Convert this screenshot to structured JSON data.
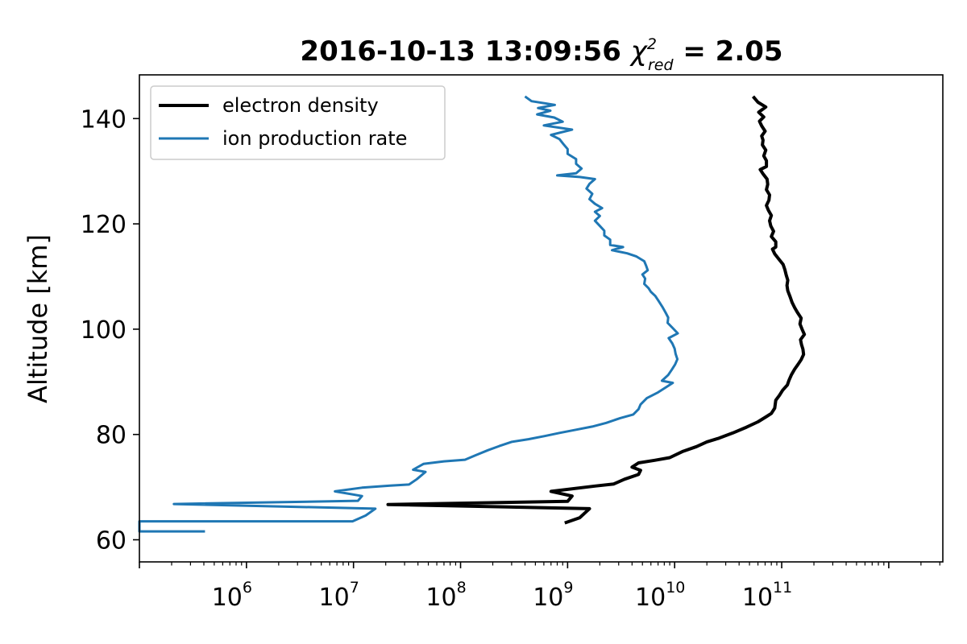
{
  "chart_data": {
    "type": "line",
    "title": {
      "prefix": "2016-10-13 13:09:56 ",
      "chi": "χ",
      "chi_sup": "2",
      "chi_sub": "red",
      "eq": " = ",
      "value": "2.05"
    },
    "xlabel": "",
    "ylabel": "Altitude [km]",
    "xscale": "log",
    "xlim": [
      100000,
      3200000000000
    ],
    "ylim": [
      55.8,
      148.3
    ],
    "x_ticks": [
      {
        "value": 1000000,
        "base": "10",
        "exp": "6"
      },
      {
        "value": 10000000,
        "base": "10",
        "exp": "7"
      },
      {
        "value": 100000000,
        "base": "10",
        "exp": "8"
      },
      {
        "value": 1000000000,
        "base": "10",
        "exp": "9"
      },
      {
        "value": 10000000000,
        "base": "10",
        "exp": "10"
      },
      {
        "value": 100000000000,
        "base": "10",
        "exp": "11"
      }
    ],
    "y_ticks": [
      {
        "value": 60,
        "label": "60"
      },
      {
        "value": 80,
        "label": "80"
      },
      {
        "value": 100,
        "label": "100"
      },
      {
        "value": 120,
        "label": "120"
      },
      {
        "value": 140,
        "label": "140"
      }
    ],
    "grid": false,
    "legend_position": "top-left",
    "series": [
      {
        "name": "electron density",
        "color": "#000000",
        "points": [
          [
            940000000.0,
            63.2
          ],
          [
            1300000000.0,
            64.2
          ],
          [
            1600000000.0,
            65.9
          ],
          [
            21000000.0,
            66.7
          ],
          [
            1000000000.0,
            67.3
          ],
          [
            1100000000.0,
            68.3
          ],
          [
            700000000.0,
            69.2
          ],
          [
            1800000000.0,
            70.2
          ],
          [
            2700000000.0,
            70.6
          ],
          [
            3400000000.0,
            71.5
          ],
          [
            4600000000.0,
            72.4
          ],
          [
            4800000000.0,
            73.2
          ],
          [
            4000000000.0,
            73.8
          ],
          [
            4600000000.0,
            74.6
          ],
          [
            6500000000.0,
            75.1
          ],
          [
            9000000000.0,
            75.6
          ],
          [
            12000000000.0,
            76.8
          ],
          [
            16000000000.0,
            77.7
          ],
          [
            20000000000.0,
            78.6
          ],
          [
            26000000000.0,
            79.3
          ],
          [
            35000000000.0,
            80.3
          ],
          [
            47000000000.0,
            81.4
          ],
          [
            60000000000.0,
            82.4
          ],
          [
            72000000000.0,
            83.4
          ],
          [
            80000000000.0,
            84.0
          ],
          [
            86000000000.0,
            85.0
          ],
          [
            88000000000.0,
            86.5
          ],
          [
            95000000000.0,
            87.4
          ],
          [
            102000000000.0,
            88.4
          ],
          [
            113000000000.0,
            89.4
          ],
          [
            117000000000.0,
            90.3
          ],
          [
            123000000000.0,
            91.3
          ],
          [
            132000000000.0,
            92.4
          ],
          [
            142000000000.0,
            93.3
          ],
          [
            152000000000.0,
            94.2
          ],
          [
            160000000000.0,
            95.2
          ],
          [
            158000000000.0,
            96.2
          ],
          [
            153000000000.0,
            97.1
          ],
          [
            150000000000.0,
            98.0
          ],
          [
            163000000000.0,
            99.0
          ],
          [
            155000000000.0,
            100.0
          ],
          [
            148000000000.0,
            101.0
          ],
          [
            152000000000.0,
            102.1
          ],
          [
            140000000000.0,
            103.2
          ],
          [
            132000000000.0,
            104.1
          ],
          [
            125000000000.0,
            105.1
          ],
          [
            120000000000.0,
            106.1
          ],
          [
            114000000000.0,
            107.3
          ],
          [
            112000000000.0,
            108.3
          ],
          [
            114000000000.0,
            109.3
          ],
          [
            110000000000.0,
            110.3
          ],
          [
            107000000000.0,
            111.3
          ],
          [
            103000000000.0,
            112.3
          ],
          [
            94000000000.0,
            113.3
          ],
          [
            86000000000.0,
            114.3
          ],
          [
            82000000000.0,
            115.2
          ],
          [
            88000000000.0,
            115.6
          ],
          [
            88000000000.0,
            116.6
          ],
          [
            80000000000.0,
            117.6
          ],
          [
            84000000000.0,
            118.6
          ],
          [
            79000000000.0,
            119.6
          ],
          [
            77000000000.0,
            120.6
          ],
          [
            80000000000.0,
            121.6
          ],
          [
            75000000000.0,
            122.6
          ],
          [
            72000000000.0,
            123.5
          ],
          [
            76000000000.0,
            124.5
          ],
          [
            77000000000.0,
            125.5
          ],
          [
            72000000000.0,
            126.5
          ],
          [
            74000000000.0,
            127.5
          ],
          [
            73000000000.0,
            128.5
          ],
          [
            67000000000.0,
            129.5
          ],
          [
            63000000000.0,
            130.3
          ],
          [
            72000000000.0,
            130.9
          ],
          [
            72000000000.0,
            132.0
          ],
          [
            68000000000.0,
            132.9
          ],
          [
            71000000000.0,
            134.0
          ],
          [
            66000000000.0,
            135.0
          ],
          [
            67000000000.0,
            135.9
          ],
          [
            65000000000.0,
            136.7
          ],
          [
            70000000000.0,
            137.6
          ],
          [
            65000000000.0,
            138.6
          ],
          [
            62000000000.0,
            139.5
          ],
          [
            68000000000.0,
            140.3
          ],
          [
            61000000000.0,
            141.2
          ],
          [
            71000000000.0,
            142.2
          ],
          [
            60000000000.0,
            143.1
          ],
          [
            54000000000.0,
            144.2
          ]
        ]
      },
      {
        "name": "ion production rate",
        "color": "#1f77b4",
        "points": [
          [
            410000.0,
            61.6
          ],
          [
            100000.0,
            61.6
          ],
          [
            100000.0,
            63.5
          ],
          [
            9800000.0,
            63.5
          ],
          [
            13000000.0,
            64.6
          ],
          [
            16000000.0,
            65.9
          ],
          [
            210000.0,
            66.8
          ],
          [
            11000000.0,
            67.4
          ],
          [
            12000000.0,
            68.3
          ],
          [
            6700000.0,
            69.2
          ],
          [
            12000000.0,
            69.9
          ],
          [
            22000000.0,
            70.3
          ],
          [
            33000000.0,
            70.5
          ],
          [
            39000000.0,
            71.5
          ],
          [
            47000000.0,
            72.9
          ],
          [
            36000000.0,
            73.3
          ],
          [
            45000000.0,
            74.4
          ],
          [
            70000000.0,
            74.9
          ],
          [
            110000000.0,
            75.2
          ],
          [
            140000000.0,
            76.1
          ],
          [
            180000000.0,
            77.0
          ],
          [
            230000000.0,
            77.8
          ],
          [
            300000000.0,
            78.6
          ],
          [
            430000000.0,
            79.1
          ],
          [
            610000000.0,
            79.7
          ],
          [
            840000000.0,
            80.3
          ],
          [
            1200000000.0,
            80.9
          ],
          [
            1700000000.0,
            81.5
          ],
          [
            2300000000.0,
            82.2
          ],
          [
            3100000000.0,
            83.1
          ],
          [
            4100000000.0,
            83.8
          ],
          [
            4600000000.0,
            84.8
          ],
          [
            4800000000.0,
            85.7
          ],
          [
            5500000000.0,
            86.9
          ],
          [
            7000000000.0,
            88.0
          ],
          [
            8200000000.0,
            88.9
          ],
          [
            9600000000.0,
            89.8
          ],
          [
            7600000000.0,
            90.2
          ],
          [
            8700000000.0,
            91.3
          ],
          [
            9400000000.0,
            92.3
          ],
          [
            10100000000.0,
            93.3
          ],
          [
            10600000000.0,
            94.3
          ],
          [
            10200000000.0,
            95.3
          ],
          [
            10000000000.0,
            96.3
          ],
          [
            9500000000.0,
            97.3
          ],
          [
            8800000000.0,
            98.3
          ],
          [
            10700000000.0,
            99.2
          ],
          [
            9600000000.0,
            100.2
          ],
          [
            8600000000.0,
            101.2
          ],
          [
            8700000000.0,
            102.2
          ],
          [
            8200000000.0,
            103.2
          ],
          [
            7700000000.0,
            104.2
          ],
          [
            7100000000.0,
            105.3
          ],
          [
            6600000000.0,
            106.3
          ],
          [
            6000000000.0,
            107.1
          ],
          [
            5700000000.0,
            107.8
          ],
          [
            5200000000.0,
            108.6
          ],
          [
            5300000000.0,
            109.6
          ],
          [
            5000000000.0,
            110.4
          ],
          [
            5600000000.0,
            111.2
          ],
          [
            5400000000.0,
            112.1
          ],
          [
            5200000000.0,
            112.9
          ],
          [
            4400000000.0,
            113.8
          ],
          [
            3600000000.0,
            114.4
          ],
          [
            2600000000.0,
            115.0
          ],
          [
            3300000000.0,
            115.6
          ],
          [
            2500000000.0,
            116.0
          ],
          [
            2500000000.0,
            117.0
          ],
          [
            2200000000.0,
            117.8
          ],
          [
            2200000000.0,
            118.7
          ],
          [
            2000000000.0,
            119.6
          ],
          [
            1800000000.0,
            120.6
          ],
          [
            2000000000.0,
            121.5
          ],
          [
            1800000000.0,
            122.3
          ],
          [
            2100000000.0,
            123.0
          ],
          [
            1800000000.0,
            123.8
          ],
          [
            1600000000.0,
            124.7
          ],
          [
            1700000000.0,
            125.7
          ],
          [
            1500000000.0,
            126.7
          ],
          [
            1600000000.0,
            127.6
          ],
          [
            1800000000.0,
            128.5
          ],
          [
            1300000000.0,
            128.9
          ],
          [
            800000000.0,
            129.2
          ],
          [
            1200000000.0,
            129.6
          ],
          [
            1350000000.0,
            130.5
          ],
          [
            1200000000.0,
            131.4
          ],
          [
            1200000000.0,
            132.3
          ],
          [
            1000000000.0,
            133.3
          ],
          [
            1000000000.0,
            134.2
          ],
          [
            910000000.0,
            135.2
          ],
          [
            840000000.0,
            136.1
          ],
          [
            700000000.0,
            136.9
          ],
          [
            1100000000.0,
            137.9
          ],
          [
            600000000.0,
            138.7
          ],
          [
            900000000.0,
            139.4
          ],
          [
            750000000.0,
            140.2
          ],
          [
            520000000.0,
            140.8
          ],
          [
            690000000.0,
            141.5
          ],
          [
            530000000.0,
            142.0
          ],
          [
            760000000.0,
            142.6
          ],
          [
            460000000.0,
            143.3
          ],
          [
            400000000.0,
            144.2
          ]
        ]
      }
    ]
  }
}
